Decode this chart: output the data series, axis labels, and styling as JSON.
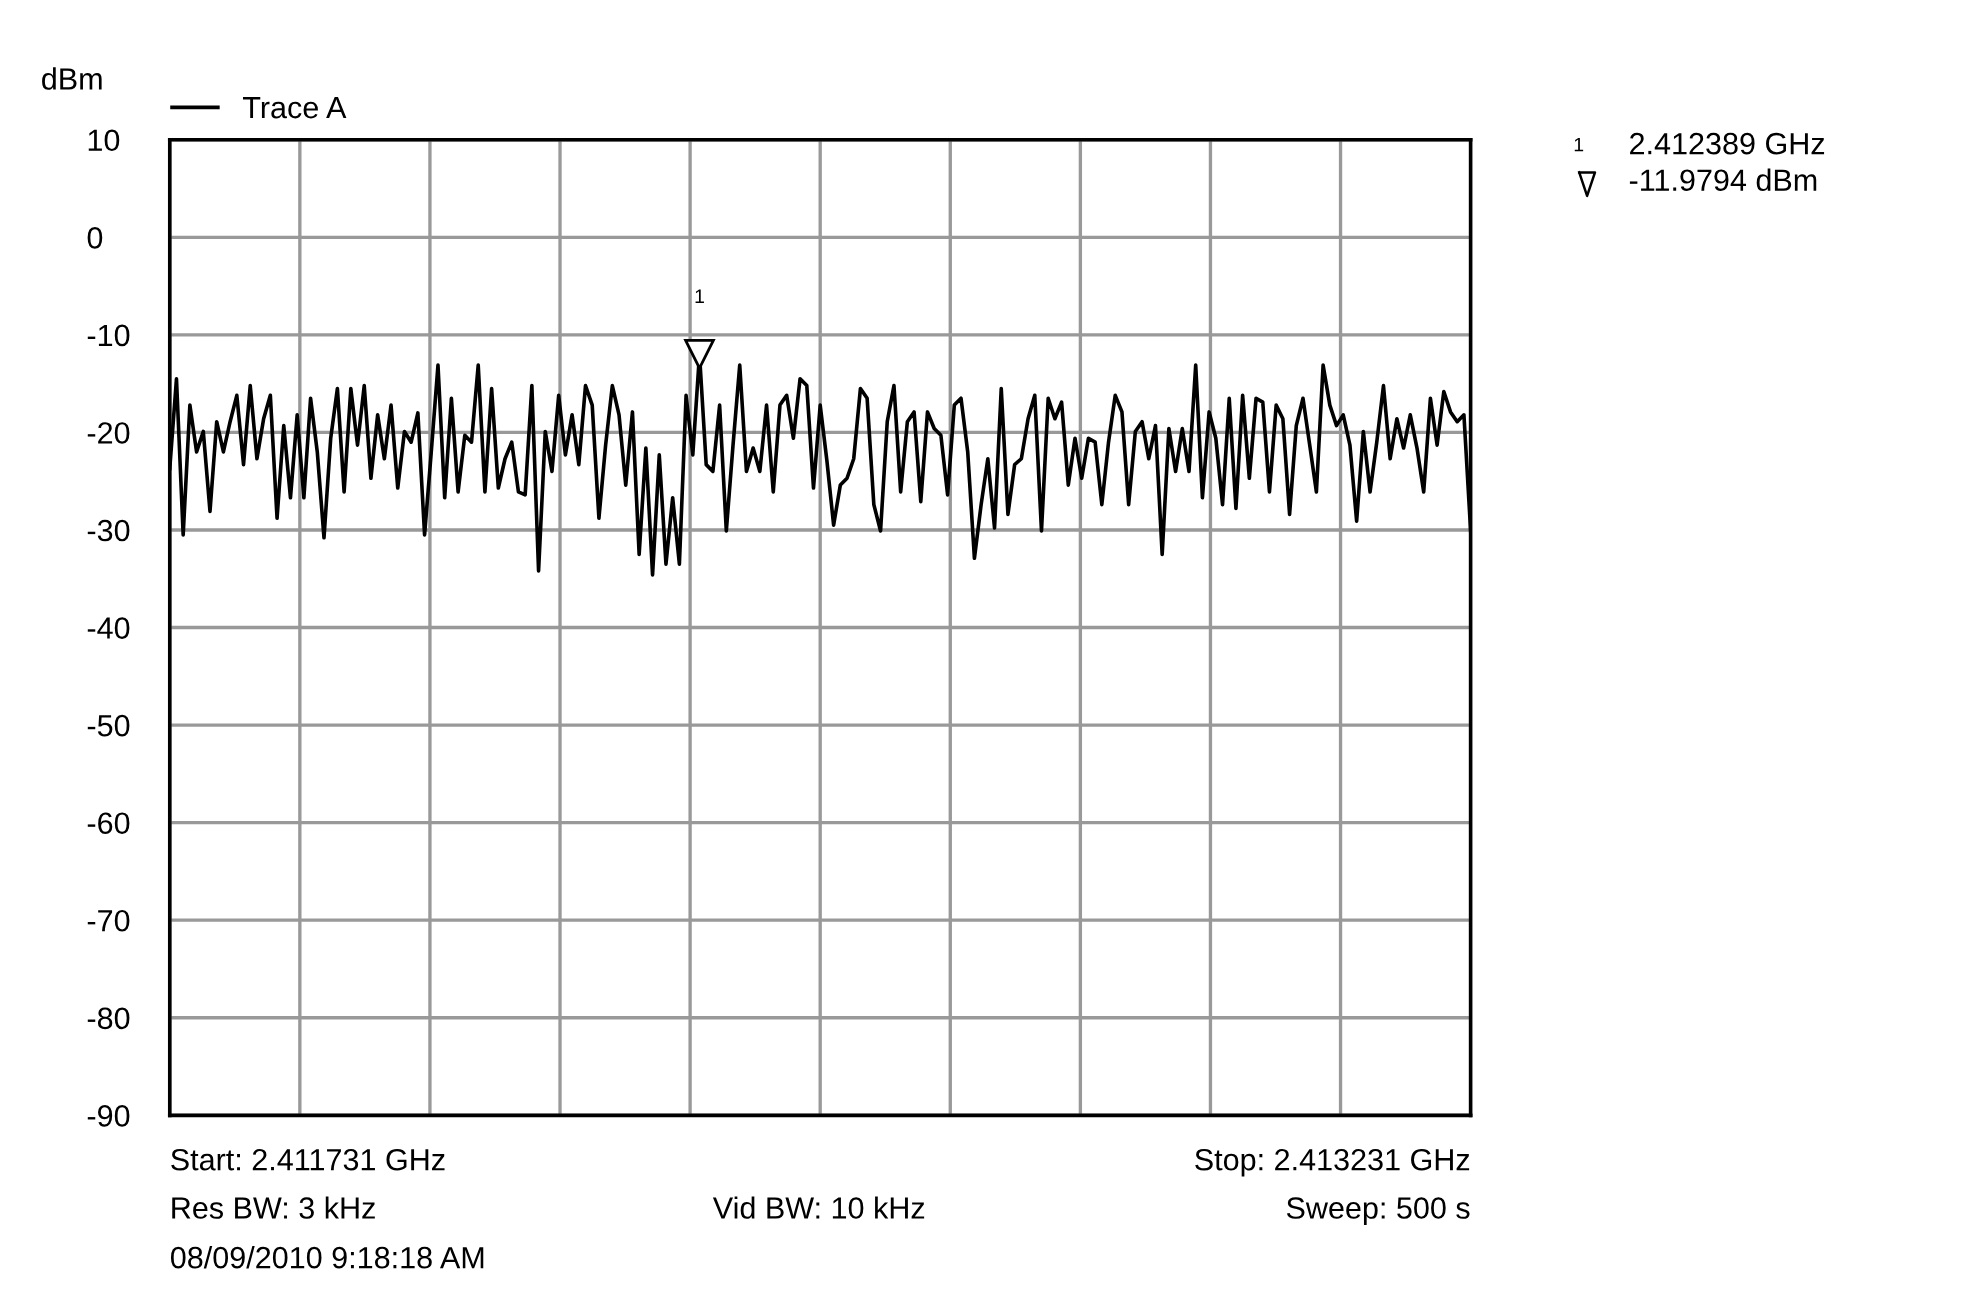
{
  "chart_data": {
    "type": "line",
    "ylabel": "dBm",
    "categories": [
      null,
      null,
      null,
      null,
      null,
      null,
      null,
      null,
      null,
      null,
      null,
      null,
      null,
      null,
      null,
      null,
      null,
      null,
      null,
      null,
      null,
      null,
      null,
      null,
      null,
      null,
      null,
      null,
      null,
      null,
      null,
      null,
      null,
      null,
      null,
      null,
      null,
      null,
      null,
      null,
      null,
      null,
      null,
      null,
      null,
      null,
      null,
      null,
      null,
      null,
      null,
      null,
      null,
      null,
      null,
      null,
      null,
      null,
      null,
      null,
      null,
      null,
      null,
      null,
      null,
      null,
      null,
      null,
      null,
      null,
      null,
      null,
      null,
      null,
      null,
      null,
      null,
      null,
      null,
      null,
      null,
      null,
      null,
      null,
      null,
      null,
      null,
      null,
      null,
      null,
      null,
      null,
      null,
      null,
      null,
      null,
      null,
      null,
      null,
      null,
      null,
      null,
      null,
      null,
      null,
      null,
      null,
      null,
      null,
      null,
      null,
      null,
      null,
      null,
      null,
      null,
      null,
      null,
      null,
      null,
      null,
      null,
      null,
      null,
      null,
      null,
      null,
      null,
      null,
      null,
      null,
      null,
      null,
      null,
      null,
      null,
      null,
      null,
      null,
      null,
      null,
      null,
      null,
      null,
      null,
      null,
      null,
      null,
      null,
      null,
      null,
      null,
      null,
      null,
      null,
      null,
      null,
      null,
      null,
      null,
      null,
      null,
      null,
      null,
      null,
      null,
      null,
      null,
      null,
      null,
      null,
      null,
      null,
      null,
      null,
      null,
      null,
      null,
      null,
      null,
      null,
      null,
      null,
      null,
      null,
      null,
      null,
      null,
      null,
      null,
      null,
      null,
      null,
      null,
      null
    ],
    "series": [
      {
        "name": "Trace A",
        "color": "#000000",
        "values": [
          -23.7,
          -14.5,
          -30.5,
          -17.2,
          -22.0,
          -19.9,
          -28.1,
          -18.9,
          -22.0,
          -18.9,
          -16.2,
          -23.3,
          -15.2,
          -22.7,
          -18.6,
          -16.2,
          -28.8,
          -19.3,
          -26.7,
          -18.2,
          -26.7,
          -16.5,
          -22.0,
          -30.8,
          -20.6,
          -15.5,
          -26.1,
          -15.5,
          -21.3,
          -15.2,
          -24.7,
          -18.2,
          -22.7,
          -17.2,
          -25.7,
          -19.9,
          -21.0,
          -18.0,
          -30.5,
          -22.0,
          -13.1,
          -26.7,
          -16.5,
          -26.1,
          -20.3,
          -21.0,
          -13.1,
          -26.1,
          -15.5,
          -25.7,
          -22.7,
          -21.0,
          -26.1,
          -26.4,
          -15.2,
          -34.2,
          -19.9,
          -24.0,
          -16.2,
          -22.3,
          -18.2,
          -23.3,
          -15.2,
          -17.2,
          -28.8,
          -21.3,
          -15.2,
          -18.2,
          -25.4,
          -17.9,
          -32.5,
          -21.6,
          -34.6,
          -22.3,
          -33.5,
          -26.7,
          -33.5,
          -16.2,
          -22.3,
          -11.9794,
          -23.3,
          -24.0,
          -17.2,
          -30.1,
          -21.3,
          -13.1,
          -24.0,
          -21.6,
          -24.0,
          -17.2,
          -26.1,
          -17.2,
          -16.2,
          -20.6,
          -14.5,
          -15.2,
          -25.7,
          -17.2,
          -22.9,
          -29.5,
          -25.4,
          -24.7,
          -22.7,
          -15.5,
          -16.5,
          -27.4,
          -30.1,
          -18.9,
          -15.2,
          -26.1,
          -18.9,
          -17.9,
          -27.1,
          -17.9,
          -19.6,
          -20.3,
          -26.4,
          -17.2,
          -16.5,
          -22.0,
          -32.9,
          -27.4,
          -22.7,
          -29.8,
          -15.5,
          -28.4,
          -23.3,
          -22.7,
          -18.6,
          -16.2,
          -30.1,
          -16.5,
          -18.6,
          -16.9,
          -25.4,
          -20.6,
          -24.7,
          -20.6,
          -21.0,
          -27.4,
          -21.0,
          -16.2,
          -17.9,
          -27.4,
          -19.9,
          -18.9,
          -22.7,
          -19.3,
          -32.5,
          -19.6,
          -24.0,
          -19.6,
          -24.0,
          -13.1,
          -26.7,
          -17.9,
          -20.6,
          -27.4,
          -16.5,
          -27.8,
          -16.2,
          -24.7,
          -16.5,
          -16.9,
          -26.1,
          -17.2,
          -18.6,
          -28.4,
          -19.3,
          -16.5,
          -21.3,
          -26.1,
          -13.1,
          -17.2,
          -19.3,
          -18.2,
          -21.3,
          -29.1,
          -19.9,
          -26.1,
          -21.0,
          -15.2,
          -22.7,
          -18.6,
          -21.6,
          -18.2,
          -21.6,
          -26.1,
          -16.5,
          -21.3,
          -15.8,
          -17.9,
          -18.9,
          -18.2,
          -30.1
        ]
      }
    ],
    "ylim": [
      -90,
      10
    ],
    "yticks": [
      -90,
      -80,
      -70,
      -60,
      -50,
      -40,
      -30,
      -20,
      -10,
      0,
      10
    ],
    "tick_labels": "y",
    "grid": true,
    "legend": "top left",
    "marker": "none",
    "line_style": "solid",
    "annotations": [
      {
        "text": "1",
        "y": -11.9794
      },
      "1",
      "2.412389 GHz",
      "-11.9794 dBm",
      "Start: 2.411731 GHz",
      "Stop: 2.413231 GHz",
      "Res BW: 3 kHz",
      "Vid BW: 10 kHz",
      "Sweep: 500 s",
      "08/09/2010 9:18:18 AM"
    ]
  }
}
